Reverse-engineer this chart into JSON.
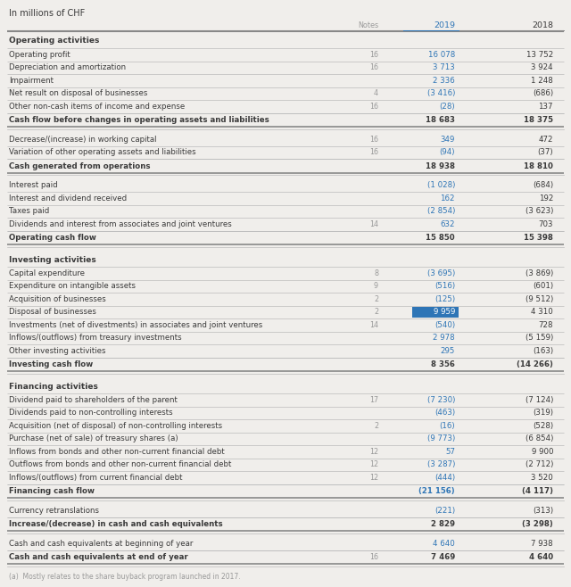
{
  "title": "In millions of CHF",
  "background_color": "#f0eeeb",
  "sections": [
    {
      "type": "section_header",
      "label": "Operating activities"
    },
    {
      "type": "row",
      "label": "Operating profit",
      "note": "16",
      "val2019": "16 078",
      "val2018": "13 752",
      "blue2019": true
    },
    {
      "type": "row",
      "label": "Depreciation and amortization",
      "note": "16",
      "val2019": "3 713",
      "val2018": "3 924",
      "blue2019": true
    },
    {
      "type": "row",
      "label": "Impairment",
      "note": "",
      "val2019": "2 336",
      "val2018": "1 248",
      "blue2019": true
    },
    {
      "type": "row",
      "label": "Net result on disposal of businesses",
      "note": "4",
      "val2019": "(3 416)",
      "val2018": "(686)",
      "blue2019": true
    },
    {
      "type": "row",
      "label": "Other non-cash items of income and expense",
      "note": "16",
      "val2019": "(28)",
      "val2018": "137",
      "blue2019": true
    },
    {
      "type": "subtotal",
      "label": "Cash flow before changes in operating assets and liabilities",
      "note": "",
      "val2019": "18 683",
      "val2018": "18 375",
      "blue2019": false
    },
    {
      "type": "spacer"
    },
    {
      "type": "row",
      "label": "Decrease/(increase) in working capital",
      "note": "16",
      "val2019": "349",
      "val2018": "472",
      "blue2019": true
    },
    {
      "type": "row",
      "label": "Variation of other operating assets and liabilities",
      "note": "16",
      "val2019": "(94)",
      "val2018": "(37)",
      "blue2019": true
    },
    {
      "type": "subtotal",
      "label": "Cash generated from operations",
      "note": "",
      "val2019": "18 938",
      "val2018": "18 810",
      "blue2019": false
    },
    {
      "type": "spacer"
    },
    {
      "type": "row",
      "label": "Interest paid",
      "note": "",
      "val2019": "(1 028)",
      "val2018": "(684)",
      "blue2019": true
    },
    {
      "type": "row",
      "label": "Interest and dividend received",
      "note": "",
      "val2019": "162",
      "val2018": "192",
      "blue2019": true
    },
    {
      "type": "row",
      "label": "Taxes paid",
      "note": "",
      "val2019": "(2 854)",
      "val2018": "(3 623)",
      "blue2019": true
    },
    {
      "type": "row",
      "label": "Dividends and interest from associates and joint ventures",
      "note": "14",
      "val2019": "632",
      "val2018": "703",
      "blue2019": true
    },
    {
      "type": "subtotal",
      "label": "Operating cash flow",
      "note": "",
      "val2019": "15 850",
      "val2018": "15 398",
      "blue2019": false
    },
    {
      "type": "spacer"
    },
    {
      "type": "section_header",
      "label": "Investing activities"
    },
    {
      "type": "row",
      "label": "Capital expenditure",
      "note": "8",
      "val2019": "(3 695)",
      "val2018": "(3 869)",
      "blue2019": true
    },
    {
      "type": "row",
      "label": "Expenditure on intangible assets",
      "note": "9",
      "val2019": "(516)",
      "val2018": "(601)",
      "blue2019": true
    },
    {
      "type": "row",
      "label": "Acquisition of businesses",
      "note": "2",
      "val2019": "(125)",
      "val2018": "(9 512)",
      "blue2019": true
    },
    {
      "type": "row",
      "label": "Disposal of businesses",
      "note": "2",
      "val2019": "9 959",
      "val2018": "4 310",
      "blue2019": true,
      "highlight2019": true
    },
    {
      "type": "row",
      "label": "Investments (net of divestments) in associates and joint ventures",
      "note": "14",
      "val2019": "(540)",
      "val2018": "728",
      "blue2019": true
    },
    {
      "type": "row",
      "label": "Inflows/(outflows) from treasury investments",
      "note": "",
      "val2019": "2 978",
      "val2018": "(5 159)",
      "blue2019": true
    },
    {
      "type": "row",
      "label": "Other investing activities",
      "note": "",
      "val2019": "295",
      "val2018": "(163)",
      "blue2019": true
    },
    {
      "type": "subtotal",
      "label": "Investing cash flow",
      "note": "",
      "val2019": "8 356",
      "val2018": "(14 266)",
      "blue2019": false
    },
    {
      "type": "spacer"
    },
    {
      "type": "section_header",
      "label": "Financing activities"
    },
    {
      "type": "row",
      "label": "Dividend paid to shareholders of the parent",
      "note": "17",
      "val2019": "(7 230)",
      "val2018": "(7 124)",
      "blue2019": true
    },
    {
      "type": "row",
      "label": "Dividends paid to non-controlling interests",
      "note": "",
      "val2019": "(463)",
      "val2018": "(319)",
      "blue2019": true
    },
    {
      "type": "row",
      "label": "Acquisition (net of disposal) of non-controlling interests",
      "note": "2",
      "val2019": "(16)",
      "val2018": "(528)",
      "blue2019": true
    },
    {
      "type": "row",
      "label": "Purchase (net of sale) of treasury shares (a)",
      "note": "",
      "val2019": "(9 773)",
      "val2018": "(6 854)",
      "blue2019": true
    },
    {
      "type": "row",
      "label": "Inflows from bonds and other non-current financial debt",
      "note": "12",
      "val2019": "57",
      "val2018": "9 900",
      "blue2019": true
    },
    {
      "type": "row",
      "label": "Outflows from bonds and other non-current financial debt",
      "note": "12",
      "val2019": "(3 287)",
      "val2018": "(2 712)",
      "blue2019": true
    },
    {
      "type": "row",
      "label": "Inflows/(outflows) from current financial debt",
      "note": "12",
      "val2019": "(444)",
      "val2018": "3 520",
      "blue2019": true
    },
    {
      "type": "subtotal",
      "label": "Financing cash flow",
      "note": "",
      "val2019": "(21 156)",
      "val2018": "(4 117)",
      "blue2019": true
    },
    {
      "type": "spacer"
    },
    {
      "type": "row",
      "label": "Currency retranslations",
      "note": "",
      "val2019": "(221)",
      "val2018": "(313)",
      "blue2019": true
    },
    {
      "type": "subtotal",
      "label": "Increase/(decrease) in cash and cash equivalents",
      "note": "",
      "val2019": "2 829",
      "val2018": "(3 298)",
      "blue2019": false
    },
    {
      "type": "spacer"
    },
    {
      "type": "row",
      "label": "Cash and cash equivalents at beginning of year",
      "note": "",
      "val2019": "4 640",
      "val2018": "7 938",
      "blue2019": true
    },
    {
      "type": "subtotal",
      "label": "Cash and cash equivalents at end of year",
      "note": "16",
      "val2019": "7 469",
      "val2018": "4 640",
      "blue2019": false
    }
  ],
  "footnote": "(a)  Mostly relates to the share buyback program launched in 2017.",
  "blue_color": "#2e75b6",
  "dark_color": "#3a3a3a",
  "gray_color": "#999999",
  "line_color": "#bbbbbb",
  "thick_line_color": "#888888"
}
